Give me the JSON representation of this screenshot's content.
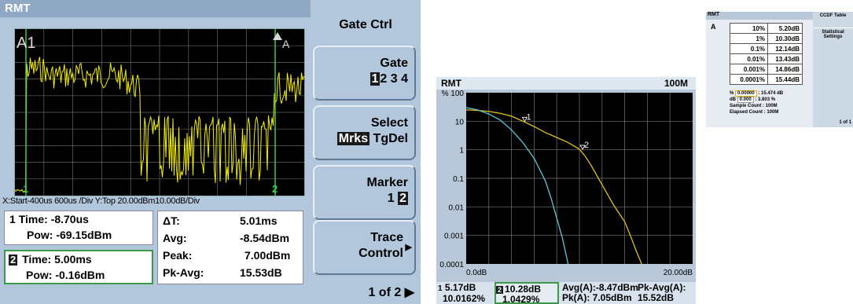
{
  "left_screen": {
    "title": "RMT",
    "trace_label": "A1",
    "gate_marker_label": "A",
    "marker_labels": [
      "1",
      "2"
    ],
    "scale_line": "X:Start-400us  600us /Div  Y:Top 20.00dBm10.00dB/Div",
    "marker1": {
      "num": "1",
      "time_label": "Time:",
      "time_value": "-8.70us",
      "pow_label": "Pow:",
      "pow_value": "-69.15dBm"
    },
    "marker2": {
      "num": "2",
      "time_label": "Time:",
      "time_value": "5.00ms",
      "pow_label": "Pow:",
      "pow_value": "-0.16dBm"
    },
    "delta": [
      {
        "label": "ΔT:",
        "value": "5.01ms"
      },
      {
        "label": "Avg:",
        "value": "-8.54dBm"
      },
      {
        "label": "Peak:",
        "value": "7.00dBm"
      },
      {
        "label": "Pk-Avg:",
        "value": "15.53dB"
      }
    ],
    "colors": {
      "trace": "#f5f000",
      "marker_line": "#3fc94a",
      "background": "#000000"
    }
  },
  "softkeys": {
    "menu_title": "Gate Ctrl",
    "gate": {
      "label": "Gate",
      "selected": "1",
      "others": "2 3 4"
    },
    "select": {
      "label": "Select",
      "selected": "Mrks",
      "other": "TgDel"
    },
    "marker": {
      "label": "Marker",
      "first": "1",
      "selected": "2"
    },
    "trace_control": {
      "line1": "Trace",
      "line2": "Control"
    },
    "page": "1 of 2 ▶"
  },
  "ccdf_screen": {
    "title": "RMT",
    "span": "100M",
    "y_ticks": [
      "% 100",
      "10",
      "1",
      "0.1",
      "0.01",
      "0.001",
      "0.0001"
    ],
    "x_start": "0.0dB",
    "x_end": "20.00dB",
    "marker_labels": [
      "1",
      "2"
    ],
    "readout": {
      "m1": {
        "num": "1",
        "db": "5.17dB",
        "pct": "10.0162%"
      },
      "m2": {
        "num": "2",
        "db": "10.28dB",
        "pct": "1.0429%"
      },
      "avg": "Avg(A):-8.47dBm",
      "pk": "Pk(A): 7.05dBm",
      "pkavg_label": "Pk-Avg(A):",
      "pkavg_value": "15.52dB"
    }
  },
  "chart_data": {
    "type": "line",
    "title": "",
    "xlabel": "",
    "ylabel": "",
    "xlim": [
      0,
      20
    ],
    "ylim": [
      0.0001,
      100
    ],
    "y_scale": "log",
    "grid": true,
    "series": [
      {
        "x": [
          0,
          1,
          2,
          3,
          4,
          5,
          6,
          7,
          8,
          9,
          10,
          10.5,
          11,
          12,
          13,
          14,
          14.5,
          15,
          15.5
        ],
        "values": [
          25,
          24,
          22,
          19,
          15,
          10,
          6.5,
          4,
          2.7,
          1.8,
          1.05,
          0.6,
          0.3,
          0.06,
          0.012,
          0.003,
          0.001,
          0.0003,
          0.0001
        ]
      },
      {
        "x": [
          0,
          1,
          2,
          3,
          4,
          5,
          6,
          7,
          7.5,
          8,
          8.5,
          9
        ],
        "values": [
          30,
          25,
          18,
          11,
          5,
          1.8,
          0.5,
          0.08,
          0.02,
          0.004,
          0.0008,
          0.0001
        ]
      }
    ],
    "colors": [
      "#e3c21a",
      "#5ec8d8"
    ]
  },
  "stat_table": {
    "title": "RMT",
    "trace": "A",
    "rows": [
      {
        "pct": "10%",
        "db": "5.20dB"
      },
      {
        "pct": "1%",
        "db": "10.30dB"
      },
      {
        "pct": "0.1%",
        "db": "12.14dB"
      },
      {
        "pct": "0.01%",
        "db": "13.43dB"
      },
      {
        "pct": "0.001%",
        "db": "14.86dB"
      },
      {
        "pct": "0.0001%",
        "db": "15.44dB"
      }
    ],
    "pct_input_label": "%",
    "pct_input_value": "0.00000",
    "pct_input_result": ": 15.474 dB",
    "db_input_label": "dB",
    "db_input_value": "0.000",
    "db_input_result": ": 3.803 %",
    "sample_count": "Sample Count :  100M",
    "elapsed_count": "Elapsed Count :  100M",
    "side_title": "CCDF Table",
    "side_item": "Statistical Settings",
    "side_page": "1 of 1"
  }
}
